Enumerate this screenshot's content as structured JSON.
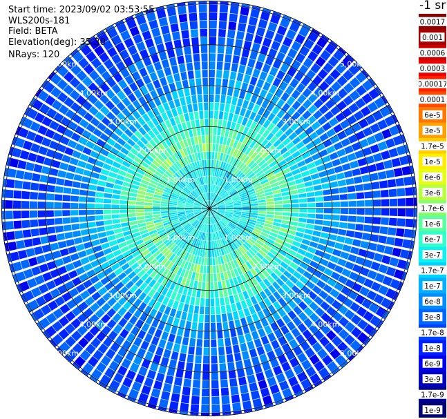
{
  "info": {
    "start_time": "Start time: 2023/09/02 03:53:55",
    "instrument": "WLS200s-181",
    "field": "Field: BETA",
    "elevation": "Elevation(deg): 35.30",
    "nrays": "NRays: 120"
  },
  "colorbar": {
    "title": "-1 sr",
    "labels": [
      "0.0017",
      "0.001",
      "0.0006",
      "0.0003",
      "0.00017",
      "0.0001",
      "6e-5",
      "3e-5",
      "1.7e-5",
      "1e-5",
      "6e-6",
      "3e-6",
      "1.7e-6",
      "1e-6",
      "6e-7",
      "3e-7",
      "1.7e-7",
      "1e-7",
      "6e-8",
      "3e-8",
      "1.7e-8",
      "1e-8",
      "6e-9",
      "3e-9",
      "1.7e-9",
      "1e-9"
    ],
    "colors": [
      "#8b0000",
      "#a50000",
      "#cc0000",
      "#ee0000",
      "#ff2000",
      "#ff4a00",
      "#ff7700",
      "#ffa000",
      "#ffcc00",
      "#ffee00",
      "#e6ff10",
      "#b8ff40",
      "#8aff6e",
      "#5cff9c",
      "#30ffcc",
      "#10f0ee",
      "#00d4ff",
      "#00b0ff",
      "#008cff",
      "#0068ff",
      "#0044ff",
      "#0020ff",
      "#0000ee",
      "#0000c0",
      "#000096",
      "#000070"
    ]
  },
  "chart_data": {
    "type": "heatmap",
    "projection": "polar (PPI)",
    "field": "BETA",
    "elevation_deg": 35.3,
    "n_rays": 120,
    "range_ring_labels": [
      "1.00km",
      "2.00km",
      "3.00km",
      "4.00km",
      "5.00km"
    ],
    "range_rings_km": [
      1,
      2,
      3,
      4,
      5
    ],
    "spoke_angles_deg": [
      0,
      30,
      60,
      90,
      120,
      150,
      180,
      210,
      240,
      270,
      300,
      330
    ],
    "color_scale": "log",
    "value_range": [
      1e-09,
      0.0017
    ],
    "radial_profile": [
      {
        "range_km": 0.3,
        "beta": 3e-07
      },
      {
        "range_km": 1.0,
        "beta": 3e-07
      },
      {
        "range_km": 1.5,
        "beta": 1e-06
      },
      {
        "range_km": 2.0,
        "beta": 6e-07
      },
      {
        "range_km": 2.5,
        "beta": 2e-07
      },
      {
        "range_km": 3.0,
        "beta": 6e-08
      },
      {
        "range_km": 4.0,
        "beta": 2e-08
      },
      {
        "range_km": 5.0,
        "beta": 1.5e-08
      },
      {
        "range_km": 5.2,
        "beta": 1.5e-08
      }
    ]
  }
}
